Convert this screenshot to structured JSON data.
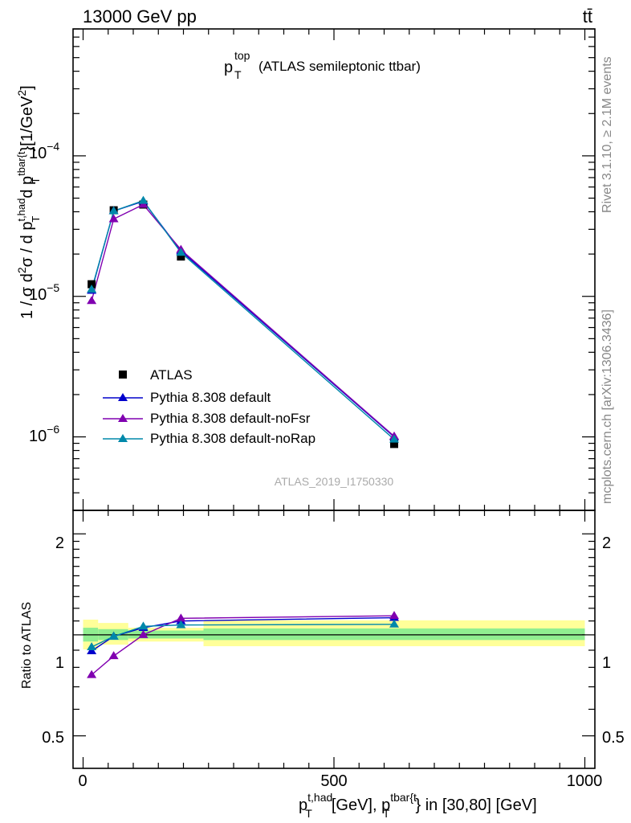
{
  "header": {
    "energy": "13000 GeV pp",
    "process": "tt̄",
    "plot_title_base": "p",
    "plot_title_sup": "top",
    "plot_title_sub": "T",
    "plot_title_rest": "(ATLAS semileptonic ttbar)",
    "side_label_top": "Rivet 3.1.10, ≥ 2.1M events",
    "side_label_bottom": "mcplots.cern.ch [arXiv:1306.3436]",
    "analysis_ref": "ATLAS_2019_I1750330"
  },
  "axes": {
    "main_ylabel_a": "1 / σ d",
    "main_ylabel_b": "σ / d p",
    "main_ylabel_c": "d p",
    "main_ylabel_d": "}[1/GeV",
    "ratio_ylabel": "Ratio to ATLAS",
    "xlabel_a": "p",
    "xlabel_b": "[GeV], p",
    "xlabel_c": "} in [30,80] [GeV]",
    "sup_two": "2",
    "sup_thad": "t,had",
    "sup_tbar": "tbar{t",
    "sub_T": "T",
    "ytick_main": [
      "10",
      "10",
      "10"
    ],
    "ytick_main_exp": [
      "−4",
      "−5",
      "−6"
    ],
    "ytick_ratio": [
      "2",
      "1",
      "0.5"
    ],
    "xtick": [
      "0",
      "500",
      "1000"
    ]
  },
  "colors": {
    "data": "#000000",
    "default": "#0000cc",
    "noFsr": "#8000b0",
    "noRap": "#0088aa",
    "band_inner": "#90ee90",
    "band_outer": "#ffff99"
  },
  "chart_data": [
    {
      "type": "scatter",
      "xlim": [
        -20,
        1020
      ],
      "ylim": [
        3e-07,
        0.0008
      ],
      "yscale": "log",
      "legend_position": "bottom-left",
      "series": [
        {
          "name": "ATLAS",
          "marker": "square",
          "x": [
            17,
            61,
            120,
            195,
            620
          ],
          "y": [
            1.22e-05,
            4.1e-05,
            4.5e-05,
            1.92e-05,
            8.9e-07
          ]
        },
        {
          "name": "Pythia 8.308 default",
          "marker": "triangle",
          "x": [
            17,
            61,
            120,
            195,
            620
          ],
          "y": [
            1.1e-05,
            4.05e-05,
            4.75e-05,
            2.1e-05,
            1e-06
          ]
        },
        {
          "name": "Pythia 8.308 default-noFsr",
          "marker": "triangle",
          "x": [
            17,
            61,
            120,
            195,
            620
          ],
          "y": [
            9.3e-06,
            3.55e-05,
            4.5e-05,
            2.15e-05,
            1.01e-06
          ]
        },
        {
          "name": "Pythia 8.308 default-noRap",
          "marker": "triangle",
          "x": [
            17,
            61,
            120,
            195,
            620
          ],
          "y": [
            1.12e-05,
            4.05e-05,
            4.8e-05,
            2.05e-05,
            9.6e-07
          ]
        }
      ]
    },
    {
      "type": "line",
      "xlim": [
        -20,
        1020
      ],
      "ylim": [
        0.4,
        2.35
      ],
      "yscale": "log",
      "band_bins": [
        {
          "x0": 0,
          "x1": 30,
          "inner": [
            0.955,
            1.05
          ],
          "outer": [
            0.905,
            1.11
          ]
        },
        {
          "x0": 30,
          "x1": 90,
          "inner": [
            0.965,
            1.04
          ],
          "outer": [
            0.935,
            1.085
          ]
        },
        {
          "x0": 90,
          "x1": 240,
          "inner": [
            0.975,
            1.03
          ],
          "outer": [
            0.955,
            1.05
          ]
        },
        {
          "x0": 240,
          "x1": 1000,
          "inner": [
            0.965,
            1.045
          ],
          "outer": [
            0.925,
            1.105
          ]
        }
      ],
      "series": [
        {
          "name": "Pythia 8.308 default",
          "x": [
            17,
            61,
            120,
            195,
            620
          ],
          "y": [
            0.895,
            0.99,
            1.05,
            1.1,
            1.125
          ]
        },
        {
          "name": "Pythia 8.308 default-noFsr",
          "x": [
            17,
            61,
            120,
            195,
            620
          ],
          "y": [
            0.76,
            0.865,
            1.0,
            1.12,
            1.14
          ]
        },
        {
          "name": "Pythia 8.308 default-noRap",
          "x": [
            17,
            61,
            120,
            195,
            620
          ],
          "y": [
            0.92,
            0.99,
            1.06,
            1.07,
            1.075
          ]
        }
      ]
    }
  ]
}
